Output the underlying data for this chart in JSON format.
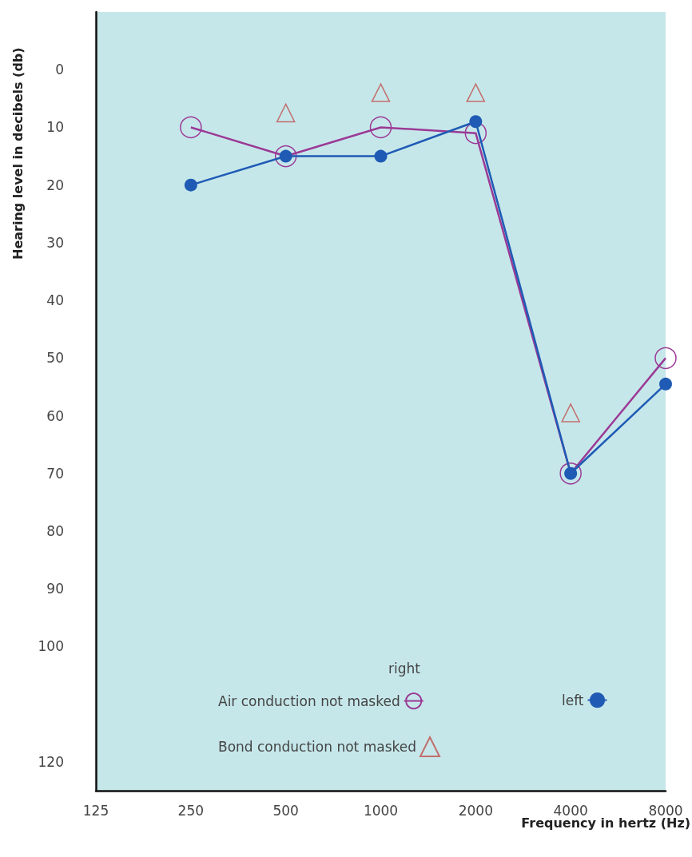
{
  "chart_data": {
    "type": "line",
    "xlabel": "Frequency in hertz (Hz)",
    "ylabel": "Hearing level in decibels (db)",
    "categories": [
      "125",
      "250",
      "500",
      "1000",
      "2000",
      "4000",
      "8000"
    ],
    "ylim": [
      125,
      -10
    ],
    "yticks": [
      0,
      10,
      20,
      30,
      40,
      50,
      60,
      70,
      80,
      90,
      100,
      120
    ],
    "series": [
      {
        "name": "Air conduction not masked",
        "marker": "circle",
        "color": "#9b3a96",
        "values": [
          null,
          10,
          15,
          10,
          11,
          70,
          50
        ]
      },
      {
        "name": "left",
        "marker": "circle",
        "color": "#1f5bb5",
        "values": [
          null,
          20,
          15,
          15,
          9,
          70,
          54.5
        ]
      },
      {
        "name": "Bond conduction not masked",
        "type": "scatter",
        "marker": "triangle",
        "color": "#c0504d",
        "values": [
          null,
          null,
          7.5,
          4,
          4,
          59.5,
          null
        ]
      }
    ],
    "annotations": [
      "right"
    ],
    "legend": "bottom right"
  }
}
